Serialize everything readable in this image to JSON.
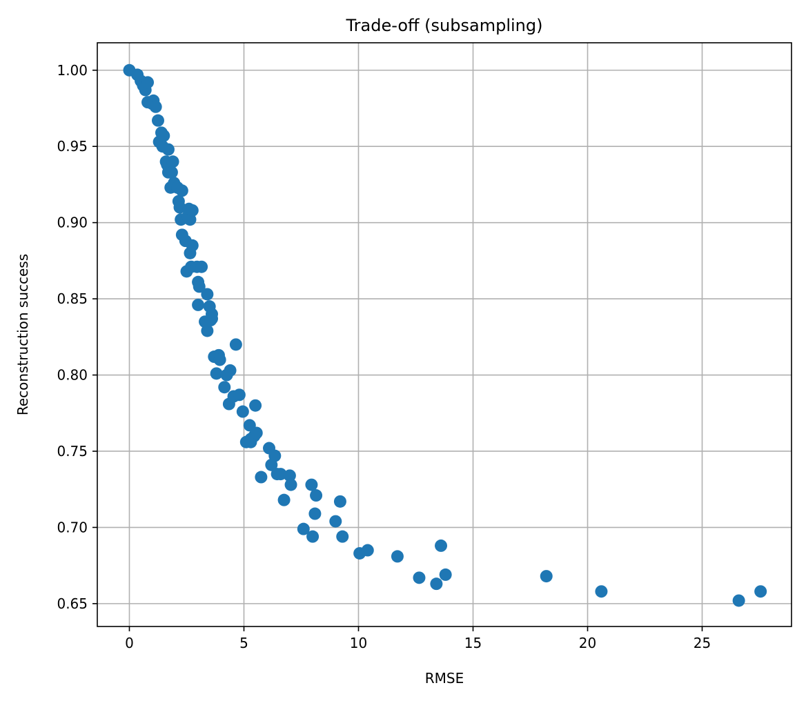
{
  "chart_data": {
    "type": "scatter",
    "title": "Trade-off (subsampling)",
    "xlabel": "RMSE",
    "ylabel": "Reconstruction success",
    "xlim": [
      -1.4,
      28.9
    ],
    "ylim": [
      0.635,
      1.018
    ],
    "xticks": [
      0,
      5,
      10,
      15,
      20,
      25
    ],
    "yticks": [
      0.65,
      0.7,
      0.75,
      0.8,
      0.85,
      0.9,
      0.95,
      1.0
    ],
    "xtick_labels": [
      "0",
      "5",
      "10",
      "15",
      "20",
      "25"
    ],
    "ytick_labels": [
      "0.65",
      "0.70",
      "0.75",
      "0.80",
      "0.85",
      "0.90",
      "0.95",
      "1.00"
    ],
    "grid": true,
    "marker_color": "#1f77b4",
    "series": [
      {
        "points": [
          [
            0.0,
            1.0
          ],
          [
            0.35,
            0.997
          ],
          [
            0.5,
            0.993
          ],
          [
            0.6,
            0.99
          ],
          [
            0.7,
            0.987
          ],
          [
            0.8,
            0.992
          ],
          [
            0.8,
            0.979
          ],
          [
            1.0,
            0.978
          ],
          [
            1.05,
            0.98
          ],
          [
            1.15,
            0.976
          ],
          [
            1.25,
            0.967
          ],
          [
            1.3,
            0.953
          ],
          [
            1.4,
            0.959
          ],
          [
            1.45,
            0.95
          ],
          [
            1.5,
            0.957
          ],
          [
            1.6,
            0.94
          ],
          [
            1.65,
            0.938
          ],
          [
            1.7,
            0.948
          ],
          [
            1.7,
            0.933
          ],
          [
            1.8,
            0.923
          ],
          [
            1.85,
            0.933
          ],
          [
            1.9,
            0.94
          ],
          [
            1.95,
            0.926
          ],
          [
            2.1,
            0.923
          ],
          [
            2.15,
            0.914
          ],
          [
            2.2,
            0.91
          ],
          [
            2.25,
            0.902
          ],
          [
            2.3,
            0.921
          ],
          [
            2.3,
            0.892
          ],
          [
            2.45,
            0.888
          ],
          [
            2.5,
            0.868
          ],
          [
            2.55,
            0.904
          ],
          [
            2.6,
            0.909
          ],
          [
            2.65,
            0.902
          ],
          [
            2.65,
            0.88
          ],
          [
            2.7,
            0.871
          ],
          [
            2.75,
            0.908
          ],
          [
            2.75,
            0.885
          ],
          [
            2.95,
            0.871
          ],
          [
            3.0,
            0.846
          ],
          [
            3.0,
            0.861
          ],
          [
            3.05,
            0.858
          ],
          [
            3.15,
            0.871
          ],
          [
            3.3,
            0.835
          ],
          [
            3.4,
            0.853
          ],
          [
            3.4,
            0.829
          ],
          [
            3.5,
            0.845
          ],
          [
            3.55,
            0.836
          ],
          [
            3.6,
            0.84
          ],
          [
            3.6,
            0.837
          ],
          [
            3.7,
            0.812
          ],
          [
            3.8,
            0.801
          ],
          [
            3.9,
            0.813
          ],
          [
            3.95,
            0.81
          ],
          [
            4.15,
            0.792
          ],
          [
            4.25,
            0.8
          ],
          [
            4.35,
            0.781
          ],
          [
            4.4,
            0.803
          ],
          [
            4.55,
            0.786
          ],
          [
            4.65,
            0.82
          ],
          [
            4.8,
            0.787
          ],
          [
            4.95,
            0.776
          ],
          [
            5.1,
            0.756
          ],
          [
            5.25,
            0.767
          ],
          [
            5.3,
            0.758
          ],
          [
            5.3,
            0.756
          ],
          [
            5.45,
            0.76
          ],
          [
            5.5,
            0.78
          ],
          [
            5.55,
            0.762
          ],
          [
            5.75,
            0.733
          ],
          [
            6.1,
            0.752
          ],
          [
            6.2,
            0.741
          ],
          [
            6.35,
            0.747
          ],
          [
            6.45,
            0.735
          ],
          [
            6.6,
            0.735
          ],
          [
            6.75,
            0.718
          ],
          [
            7.0,
            0.734
          ],
          [
            7.05,
            0.728
          ],
          [
            7.6,
            0.699
          ],
          [
            7.95,
            0.728
          ],
          [
            8.0,
            0.694
          ],
          [
            8.1,
            0.709
          ],
          [
            8.15,
            0.721
          ],
          [
            9.0,
            0.704
          ],
          [
            9.2,
            0.717
          ],
          [
            9.3,
            0.694
          ],
          [
            10.05,
            0.683
          ],
          [
            10.4,
            0.685
          ],
          [
            11.7,
            0.681
          ],
          [
            12.65,
            0.667
          ],
          [
            13.4,
            0.663
          ],
          [
            13.6,
            0.688
          ],
          [
            13.8,
            0.669
          ],
          [
            18.2,
            0.668
          ],
          [
            20.6,
            0.658
          ],
          [
            26.6,
            0.652
          ],
          [
            27.55,
            0.658
          ]
        ]
      }
    ]
  }
}
